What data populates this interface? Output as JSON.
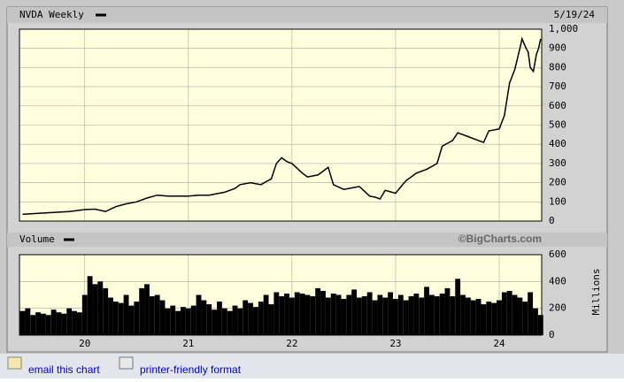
{
  "chart_data": [
    {
      "type": "line",
      "title": "NVDA Weekly",
      "date": "5/19/24",
      "color": "#000000",
      "grid": true,
      "x": [
        2019.4,
        2019.55,
        2019.7,
        2019.85,
        2020.0,
        2020.1,
        2020.2,
        2020.3,
        2020.4,
        2020.5,
        2020.6,
        2020.7,
        2020.8,
        2020.9,
        2021.0,
        2021.1,
        2021.2,
        2021.35,
        2021.45,
        2021.5,
        2021.6,
        2021.7,
        2021.75,
        2021.8,
        2021.85,
        2021.9,
        2021.95,
        2022.0,
        2022.1,
        2022.15,
        2022.25,
        2022.3,
        2022.35,
        2022.4,
        2022.5,
        2022.6,
        2022.65,
        2022.75,
        2022.8,
        2022.85,
        2022.9,
        2023.0,
        2023.1,
        2023.2,
        2023.3,
        2023.4,
        2023.45,
        2023.55,
        2023.6,
        2023.7,
        2023.8,
        2023.85,
        2023.9,
        2024.0,
        2024.05,
        2024.1,
        2024.15,
        2024.2,
        2024.22,
        2024.26,
        2024.28,
        2024.3,
        2024.33,
        2024.36,
        2024.38,
        2024.4
      ],
      "values": [
        35,
        40,
        45,
        50,
        60,
        62,
        50,
        75,
        90,
        100,
        120,
        135,
        130,
        130,
        130,
        135,
        135,
        150,
        170,
        190,
        200,
        190,
        205,
        220,
        300,
        330,
        310,
        300,
        250,
        230,
        240,
        260,
        280,
        190,
        165,
        175,
        180,
        130,
        125,
        115,
        160,
        145,
        210,
        250,
        270,
        300,
        390,
        420,
        460,
        440,
        420,
        410,
        470,
        480,
        550,
        720,
        790,
        900,
        950,
        900,
        880,
        800,
        780,
        870,
        900,
        950
      ],
      "xlim": [
        2019.37,
        2024.41
      ],
      "ylim": [
        0,
        1000
      ],
      "yticks": [
        0,
        100,
        200,
        300,
        400,
        500,
        600,
        700,
        800,
        900,
        {
          "value": 1000,
          "label": "1,000"
        }
      ]
    },
    {
      "type": "bar",
      "title": "Volume",
      "source": "©BigCharts.com",
      "y_label": "Millions",
      "color": "#000000",
      "grid": true,
      "x": [
        2019.4,
        2019.45,
        2019.5,
        2019.55,
        2019.6,
        2019.65,
        2019.7,
        2019.75,
        2019.8,
        2019.85,
        2019.9,
        2019.95,
        2020.0,
        2020.05,
        2020.1,
        2020.15,
        2020.2,
        2020.25,
        2020.3,
        2020.35,
        2020.4,
        2020.45,
        2020.5,
        2020.55,
        2020.6,
        2020.65,
        2020.7,
        2020.75,
        2020.8,
        2020.85,
        2020.9,
        2020.95,
        2021.0,
        2021.05,
        2021.1,
        2021.15,
        2021.2,
        2021.25,
        2021.3,
        2021.35,
        2021.4,
        2021.45,
        2021.5,
        2021.55,
        2021.6,
        2021.65,
        2021.7,
        2021.75,
        2021.8,
        2021.85,
        2021.9,
        2021.95,
        2022.0,
        2022.05,
        2022.1,
        2022.15,
        2022.2,
        2022.25,
        2022.3,
        2022.35,
        2022.4,
        2022.45,
        2022.5,
        2022.55,
        2022.6,
        2022.65,
        2022.7,
        2022.75,
        2022.8,
        2022.85,
        2022.9,
        2022.95,
        2023.0,
        2023.05,
        2023.1,
        2023.15,
        2023.2,
        2023.25,
        2023.3,
        2023.35,
        2023.4,
        2023.45,
        2023.5,
        2023.55,
        2023.6,
        2023.65,
        2023.7,
        2023.75,
        2023.8,
        2023.85,
        2023.9,
        2023.95,
        2024.0,
        2024.05,
        2024.1,
        2024.15,
        2024.2,
        2024.25,
        2024.3,
        2024.35,
        2024.4
      ],
      "values": [
        180,
        200,
        150,
        170,
        160,
        150,
        190,
        170,
        160,
        200,
        180,
        170,
        300,
        440,
        380,
        400,
        350,
        280,
        250,
        240,
        300,
        220,
        250,
        350,
        380,
        290,
        300,
        260,
        200,
        220,
        180,
        210,
        200,
        220,
        300,
        260,
        230,
        190,
        250,
        200,
        180,
        220,
        200,
        260,
        240,
        210,
        250,
        300,
        230,
        320,
        290,
        310,
        280,
        320,
        310,
        300,
        290,
        350,
        330,
        280,
        310,
        300,
        270,
        300,
        340,
        280,
        290,
        320,
        260,
        300,
        280,
        320,
        270,
        300,
        260,
        290,
        310,
        280,
        360,
        300,
        290,
        310,
        350,
        290,
        420,
        300,
        280,
        260,
        270,
        230,
        250,
        240,
        260,
        320,
        330,
        300,
        280,
        250,
        320,
        200,
        150
      ],
      "xlim": [
        2019.37,
        2024.41
      ],
      "ylim": [
        0,
        600
      ],
      "yticks": [
        0,
        200,
        400,
        600
      ],
      "xticks": [
        {
          "value": 2020,
          "label": "20"
        },
        {
          "value": 2021,
          "label": "21"
        },
        {
          "value": 2022,
          "label": "22"
        },
        {
          "value": 2023,
          "label": "23"
        },
        {
          "value": 2024,
          "label": "24"
        }
      ]
    }
  ],
  "links": [
    "email this chart",
    "printer-friendly format"
  ]
}
